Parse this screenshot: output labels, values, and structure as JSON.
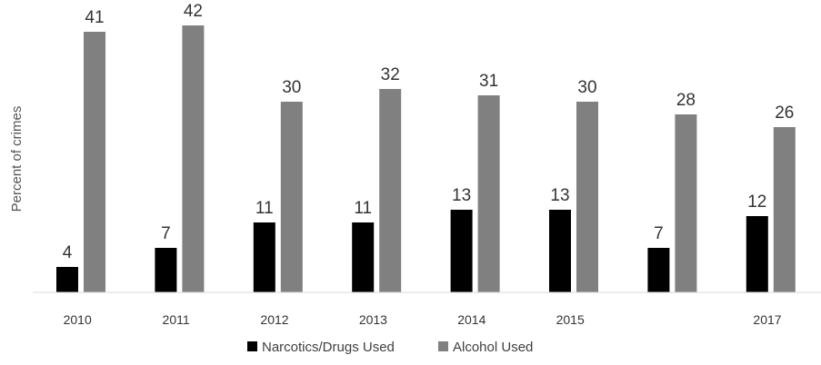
{
  "chart_data": {
    "type": "bar",
    "title": "",
    "xlabel": "",
    "ylabel": "Percent of crimes",
    "categories": [
      "2010",
      "2011",
      "2012",
      "2013",
      "2014",
      "2015",
      "",
      "2017"
    ],
    "series": [
      {
        "name": "Narcotics/Drugs Used",
        "color": "#000000",
        "values": [
          4,
          7,
          11,
          11,
          13,
          13,
          7,
          12
        ]
      },
      {
        "name": "Alcohol Used",
        "color": "#808080",
        "values": [
          41,
          42,
          30,
          32,
          31,
          30,
          28,
          26
        ]
      }
    ],
    "ylim": [
      0,
      45
    ],
    "grid": false,
    "legend": "bottom-center"
  }
}
